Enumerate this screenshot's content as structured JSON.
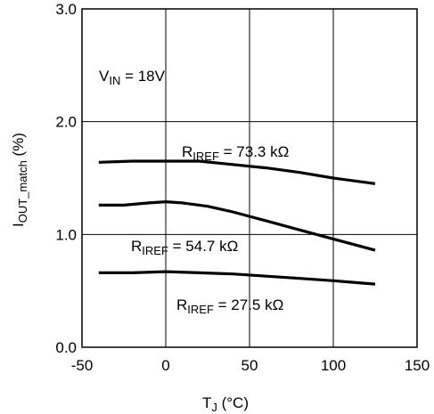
{
  "chart_data": {
    "type": "line",
    "title": "",
    "xlabel": {
      "main": "T",
      "sub": "J",
      "rest": " (°C)"
    },
    "ylabel": {
      "main": "I",
      "sub": "OUT_match",
      "rest": " (%)"
    },
    "xlim": [
      -50,
      150
    ],
    "ylim": [
      0.0,
      3.0
    ],
    "x_ticks": [
      -50,
      0,
      50,
      100,
      150
    ],
    "x_tick_labels": [
      "-50",
      "0",
      "50",
      "100",
      "150"
    ],
    "y_ticks": [
      0.0,
      1.0,
      2.0,
      3.0
    ],
    "y_tick_labels": [
      "0.0",
      "1.0",
      "2.0",
      "3.0"
    ],
    "grid": true,
    "series": [
      {
        "name": "R_IREF = 73.3 kΩ",
        "x": [
          -40,
          -20,
          0,
          20,
          40,
          60,
          80,
          100,
          125
        ],
        "y": [
          1.64,
          1.65,
          1.65,
          1.65,
          1.62,
          1.59,
          1.55,
          1.5,
          1.45
        ]
      },
      {
        "name": "R_IREF = 54.7 kΩ",
        "x": [
          -40,
          -25,
          -10,
          0,
          10,
          25,
          40,
          60,
          80,
          100,
          125
        ],
        "y": [
          1.26,
          1.26,
          1.28,
          1.29,
          1.28,
          1.25,
          1.2,
          1.12,
          1.04,
          0.96,
          0.86
        ]
      },
      {
        "name": "R_IREF = 27.5 kΩ",
        "x": [
          -40,
          -20,
          0,
          20,
          40,
          60,
          80,
          100,
          125
        ],
        "y": [
          0.66,
          0.66,
          0.67,
          0.66,
          0.65,
          0.63,
          0.61,
          0.59,
          0.56
        ]
      }
    ],
    "annotations": [
      {
        "main": "V",
        "sub": "IN",
        "rest": " = 18V"
      },
      {
        "main": "R",
        "sub": "IREF",
        "rest": " = 73.3 kΩ"
      },
      {
        "main": "R",
        "sub": "IREF",
        "rest": " = 54.7 kΩ"
      },
      {
        "main": "R",
        "sub": "IREF",
        "rest": " = 27.5 kΩ"
      }
    ]
  }
}
